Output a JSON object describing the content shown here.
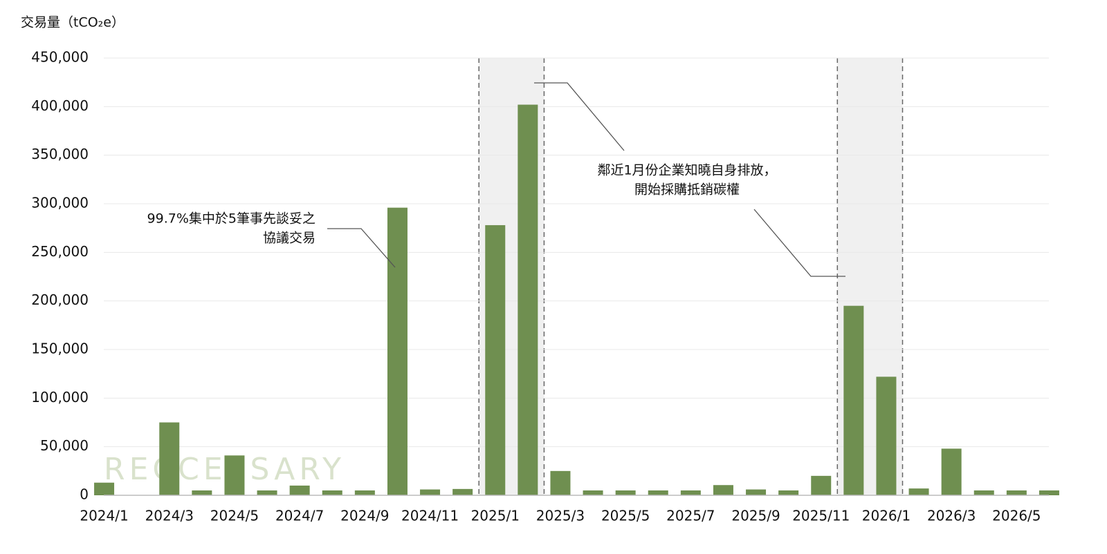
{
  "chart_data": {
    "type": "bar",
    "y_axis_label": "交易量（tCO₂e）",
    "watermark": "RECCESSARY",
    "categories": [
      "2024/1",
      null,
      "2024/3",
      null,
      "2024/5",
      null,
      "2024/7",
      null,
      "2024/9",
      null,
      "2024/11",
      null,
      "2025/1",
      null,
      "2025/3",
      null,
      "2025/5",
      null,
      "2025/7",
      null,
      "2025/9",
      null,
      "2025/11",
      null,
      "2026/1",
      null,
      "2026/3",
      null,
      "2026/5",
      null
    ],
    "values": [
      13000,
      0,
      75000,
      5000,
      41000,
      5000,
      10000,
      5000,
      5000,
      296000,
      6000,
      6500,
      278000,
      402000,
      25000,
      5000,
      5000,
      5000,
      5000,
      10500,
      6000,
      5000,
      20000,
      195000,
      122000,
      7000,
      48000,
      5000,
      5000,
      5000
    ],
    "color": "#6f8f50",
    "ylim": [
      0,
      450000
    ],
    "yticks": [
      0,
      {
        "value": 50000,
        "label": "50,000"
      },
      {
        "value": 100000,
        "label": "100,000"
      },
      {
        "value": 150000,
        "label": "150,000"
      },
      {
        "value": 200000,
        "label": "200,000"
      },
      {
        "value": 250000,
        "label": "250,000"
      },
      {
        "value": 300000,
        "label": "300,000"
      },
      {
        "value": 350000,
        "label": "350,000"
      },
      {
        "value": 400000,
        "label": "400,000"
      },
      {
        "value": 450000,
        "label": "450,000"
      }
    ],
    "grid": true,
    "annotations": [
      {
        "lines": [
          "99.7%集中於5筆事先談妥之",
          "協議交易"
        ]
      },
      {
        "lines": [
          "鄰近1月份企業知曉自身排放，",
          "開始採購抵銷碳權"
        ]
      }
    ]
  }
}
